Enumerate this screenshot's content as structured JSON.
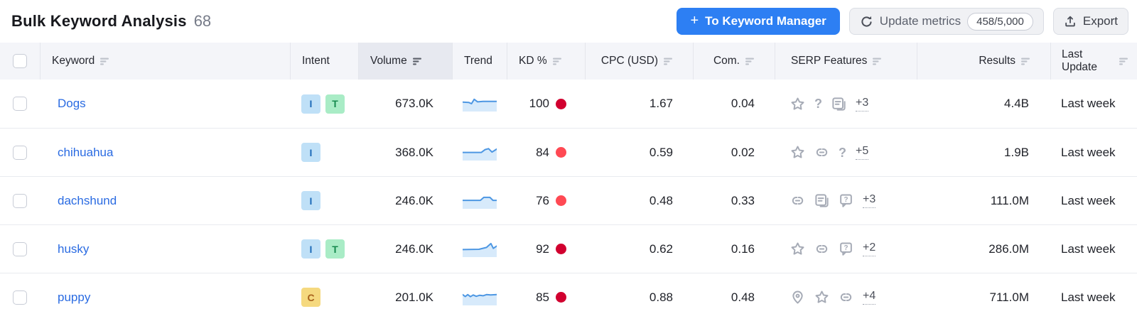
{
  "header": {
    "title": "Bulk Keyword Analysis",
    "count": "68"
  },
  "toolbar": {
    "to_keyword_manager": "To Keyword Manager",
    "update_metrics": "Update metrics",
    "quota": "458/5,000",
    "export": "Export"
  },
  "columns": {
    "keyword": "Keyword",
    "intent": "Intent",
    "volume": "Volume",
    "trend": "Trend",
    "kd": "KD %",
    "cpc": "CPC (USD)",
    "com": "Com.",
    "serp": "SERP Features",
    "results": "Results",
    "last_update": "Last Update"
  },
  "sort": {
    "active_column": "volume",
    "direction": "desc"
  },
  "colors": {
    "accent_blue": "#2d7ff3",
    "link_blue": "#2a6be2",
    "kd_very_hard": "#d1002f",
    "kd_hard": "#ff4953",
    "intent_informational_bg": "#bfe0f7",
    "intent_transactional_bg": "#a9ecc6",
    "intent_commercial_bg": "#f5d97f",
    "trend_fill": "#d7eafb",
    "trend_line": "#4d97e3",
    "header_bg": "#f4f5f9",
    "active_header_bg": "#e7e9f0"
  },
  "rows": [
    {
      "keyword": "Dogs",
      "intents": [
        "I",
        "T"
      ],
      "volume": "673.0K",
      "trend": [
        [
          0,
          40
        ],
        [
          18,
          42
        ],
        [
          26,
          50
        ],
        [
          34,
          22
        ],
        [
          44,
          38
        ],
        [
          60,
          35
        ],
        [
          100,
          35
        ]
      ],
      "kd": "100",
      "kd_level": "very-hard",
      "cpc": "1.67",
      "com": "0.04",
      "serp_icons": [
        "star",
        "question",
        "answer-box"
      ],
      "serp_more": "+3",
      "results": "4.4B",
      "last_update": "Last week"
    },
    {
      "keyword": "chihuahua",
      "intents": [
        "I"
      ],
      "volume": "368.0K",
      "trend": [
        [
          0,
          48
        ],
        [
          55,
          48
        ],
        [
          66,
          30
        ],
        [
          76,
          24
        ],
        [
          86,
          46
        ],
        [
          100,
          27
        ]
      ],
      "kd": "84",
      "kd_level": "hard",
      "cpc": "0.59",
      "com": "0.02",
      "serp_icons": [
        "star",
        "link",
        "question"
      ],
      "serp_more": "+5",
      "results": "1.9B",
      "last_update": "Last week"
    },
    {
      "keyword": "dachshund",
      "intents": [
        "I"
      ],
      "volume": "246.0K",
      "trend": [
        [
          0,
          46
        ],
        [
          52,
          46
        ],
        [
          62,
          27
        ],
        [
          80,
          27
        ],
        [
          89,
          46
        ],
        [
          100,
          46
        ]
      ],
      "kd": "76",
      "kd_level": "hard",
      "cpc": "0.48",
      "com": "0.33",
      "serp_icons": [
        "link",
        "answer-box",
        "faq"
      ],
      "serp_more": "+3",
      "results": "111.0M",
      "last_update": "Last week"
    },
    {
      "keyword": "husky",
      "intents": [
        "I",
        "T"
      ],
      "volume": "246.0K",
      "trend": [
        [
          0,
          52
        ],
        [
          48,
          50
        ],
        [
          70,
          38
        ],
        [
          83,
          13
        ],
        [
          90,
          44
        ],
        [
          100,
          29
        ]
      ],
      "kd": "92",
      "kd_level": "very-hard",
      "cpc": "0.62",
      "com": "0.16",
      "serp_icons": [
        "star",
        "link",
        "faq"
      ],
      "serp_more": "+2",
      "results": "286.0M",
      "last_update": "Last week"
    },
    {
      "keyword": "puppy",
      "intents": [
        "C"
      ],
      "volume": "201.0K",
      "trend": [
        [
          0,
          31
        ],
        [
          8,
          43
        ],
        [
          15,
          31
        ],
        [
          23,
          44
        ],
        [
          31,
          33
        ],
        [
          40,
          42
        ],
        [
          50,
          35
        ],
        [
          60,
          38
        ],
        [
          70,
          31
        ],
        [
          82,
          33
        ],
        [
          100,
          31
        ]
      ],
      "kd": "85",
      "kd_level": "very-hard",
      "cpc": "0.88",
      "com": "0.48",
      "serp_icons": [
        "pin",
        "star",
        "link"
      ],
      "serp_more": "+4",
      "results": "711.0M",
      "last_update": "Last week"
    }
  ]
}
